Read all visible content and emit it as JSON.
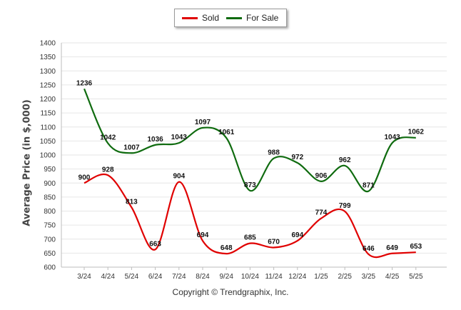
{
  "chart_data": {
    "type": "line",
    "categories": [
      "3/24",
      "4/24",
      "5/24",
      "6/24",
      "7/24",
      "8/24",
      "9/24",
      "10/24",
      "11/24",
      "12/24",
      "1/25",
      "2/25",
      "3/25",
      "4/25",
      "5/25"
    ],
    "series": [
      {
        "name": "Sold",
        "color": "#e00000",
        "values": [
          900,
          928,
          813,
          663,
          904,
          694,
          648,
          685,
          670,
          694,
          774,
          799,
          646,
          649,
          653
        ],
        "labels": [
          "900",
          "928",
          "813",
          "663",
          "904",
          "694",
          "648",
          "685",
          "670",
          "694",
          "774",
          "799",
          "646",
          "649",
          "653"
        ]
      },
      {
        "name": "For Sale",
        "color": "#0f6b0f",
        "values": [
          1236,
          1042,
          1007,
          1036,
          1043,
          1097,
          1061,
          873,
          988,
          972,
          906,
          962,
          871,
          1043,
          1062
        ],
        "labels": [
          "1236",
          "1042",
          "1007",
          "1036",
          "1043",
          "1097",
          "1061",
          "873",
          "988",
          "972",
          "906",
          "962",
          "871",
          "1043",
          "1062"
        ]
      }
    ],
    "yticks": [
      "600",
      "650",
      "700",
      "750",
      "800",
      "850",
      "900",
      "950",
      "1000",
      "1050",
      "1100",
      "1150",
      "1200",
      "1250",
      "1300",
      "1350",
      "1400"
    ],
    "ylim": [
      600,
      1400
    ],
    "ylabel": "Average Price (in $,000)",
    "grid": true,
    "legend": "top-center"
  },
  "footer": {
    "copyright": "Copyright © Trendgraphix, Inc."
  }
}
